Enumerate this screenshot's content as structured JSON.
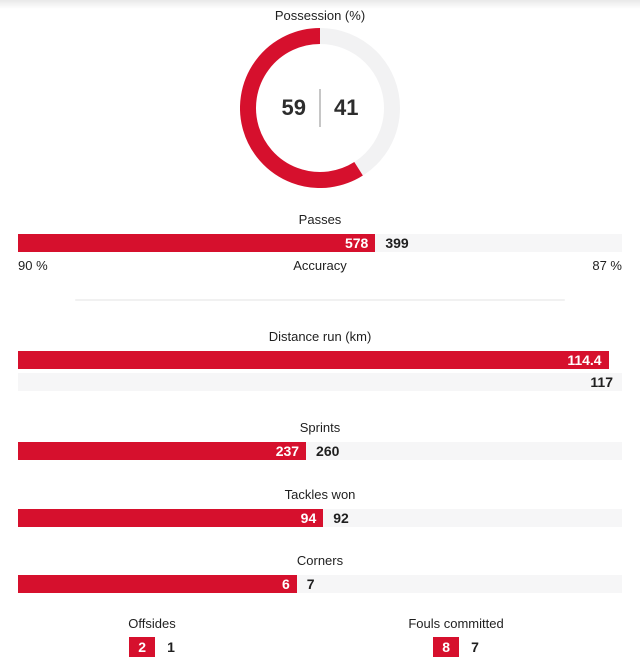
{
  "colors": {
    "home_red": "#d6102d",
    "bar_track": "#f6f6f7",
    "donut_track": "#f2f2f3",
    "text_dark": "#1f1f1f"
  },
  "chart_data": [
    {
      "type": "pie",
      "variant": "donut",
      "title": "Possession (%)",
      "labels": [
        "home",
        "away"
      ],
      "values": [
        59,
        41
      ],
      "colors": [
        "#d6102d",
        "#f2f2f3"
      ],
      "legend": "none",
      "center_divider": true
    },
    {
      "type": "bar",
      "variant": "shared-track",
      "title": "Passes",
      "labels": [
        "home",
        "away"
      ],
      "values": [
        578,
        399
      ],
      "colors": [
        "#d6102d",
        "#f6f6f7"
      ],
      "accuracy": {
        "home": "90 %",
        "label": "Accuracy",
        "away": "87 %"
      }
    },
    {
      "type": "bar",
      "variant": "stacked-rows",
      "title": "Distance run (km)",
      "labels": [
        "home",
        "away"
      ],
      "values": [
        114.4,
        117
      ],
      "colors": [
        "#d6102d",
        "#f6f6f7"
      ]
    },
    {
      "type": "bar",
      "variant": "shared-track",
      "title": "Sprints",
      "labels": [
        "home",
        "away"
      ],
      "values": [
        237,
        260
      ],
      "colors": [
        "#d6102d",
        "#f6f6f7"
      ]
    },
    {
      "type": "bar",
      "variant": "shared-track",
      "title": "Tackles won",
      "labels": [
        "home",
        "away"
      ],
      "values": [
        94,
        92
      ],
      "colors": [
        "#d6102d",
        "#f6f6f7"
      ]
    },
    {
      "type": "bar",
      "variant": "shared-track",
      "title": "Corners",
      "labels": [
        "home",
        "away"
      ],
      "values": [
        6,
        7
      ],
      "colors": [
        "#d6102d",
        "#f6f6f7"
      ]
    },
    {
      "type": "bar",
      "variant": "badge",
      "title": "Offsides",
      "labels": [
        "home",
        "away"
      ],
      "values": [
        2,
        1
      ],
      "colors": [
        "#d6102d"
      ]
    },
    {
      "type": "bar",
      "variant": "badge",
      "title": "Fouls committed",
      "labels": [
        "home",
        "away"
      ],
      "values": [
        8,
        7
      ],
      "colors": [
        "#d6102d"
      ]
    }
  ]
}
